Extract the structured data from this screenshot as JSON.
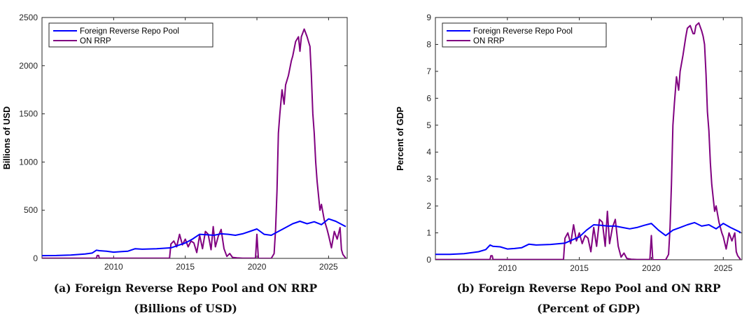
{
  "chart_data": [
    {
      "type": "line",
      "ylabel": "Billions of USD",
      "xlabel": "",
      "xlim": [
        2005,
        2026.3
      ],
      "ylim": [
        0,
        2500
      ],
      "xticks": [
        2010,
        2015,
        2020,
        2025
      ],
      "yticks": [
        0,
        500,
        1000,
        1500,
        2000,
        2500
      ],
      "legend": {
        "placement": "top-left"
      },
      "series": [
        {
          "name": "Foreign Reverse Repo Pool",
          "color": "#0000ff",
          "x": [
            2005.0,
            2006.0,
            2007.0,
            2008.0,
            2008.5,
            2008.8,
            2009.0,
            2009.5,
            2010.0,
            2010.5,
            2011.0,
            2011.5,
            2012.0,
            2013.0,
            2014.0,
            2015.0,
            2015.5,
            2016.0,
            2016.5,
            2017.0,
            2017.5,
            2018.0,
            2018.5,
            2019.0,
            2019.5,
            2020.0,
            2020.5,
            2021.0,
            2021.5,
            2022.0,
            2022.5,
            2023.0,
            2023.5,
            2024.0,
            2024.5,
            2025.0,
            2025.5,
            2026.2
          ],
          "y": [
            28,
            30,
            35,
            45,
            55,
            85,
            80,
            75,
            65,
            70,
            75,
            100,
            95,
            100,
            110,
            160,
            200,
            250,
            245,
            240,
            255,
            250,
            240,
            255,
            280,
            305,
            250,
            240,
            280,
            320,
            360,
            385,
            360,
            380,
            350,
            410,
            385,
            330
          ]
        },
        {
          "name": "ON RRP",
          "color": "#800080",
          "x": [
            2005.0,
            2008.8,
            2008.85,
            2008.95,
            2009.0,
            2013.9,
            2014.0,
            2014.2,
            2014.4,
            2014.6,
            2014.8,
            2015.0,
            2015.2,
            2015.4,
            2015.6,
            2015.8,
            2016.0,
            2016.2,
            2016.4,
            2016.6,
            2016.8,
            2016.95,
            2017.1,
            2017.3,
            2017.5,
            2017.7,
            2017.9,
            2018.1,
            2018.3,
            2018.6,
            2019.0,
            2019.5,
            2019.9,
            2020.0,
            2020.1,
            2020.2,
            2020.3,
            2021.0,
            2021.2,
            2021.3,
            2021.4,
            2021.5,
            2021.6,
            2021.75,
            2021.9,
            2022.0,
            2022.2,
            2022.4,
            2022.5,
            2022.7,
            2022.9,
            2023.0,
            2023.1,
            2023.3,
            2023.5,
            2023.6,
            2023.7,
            2023.8,
            2023.9,
            2024.0,
            2024.1,
            2024.2,
            2024.4,
            2024.5,
            2024.7,
            2024.9,
            2025.0,
            2025.2,
            2025.4,
            2025.6,
            2025.8,
            2025.9,
            2026.0,
            2026.2
          ],
          "y": [
            2,
            2,
            30,
            30,
            2,
            2,
            150,
            180,
            120,
            250,
            140,
            200,
            120,
            180,
            160,
            60,
            240,
            100,
            280,
            250,
            90,
            330,
            120,
            230,
            300,
            100,
            20,
            50,
            10,
            5,
            2,
            2,
            2,
            250,
            0,
            0,
            0,
            0,
            50,
            300,
            700,
            1300,
            1500,
            1750,
            1600,
            1800,
            1900,
            2050,
            2100,
            2250,
            2300,
            2150,
            2300,
            2380,
            2300,
            2250,
            2200,
            1900,
            1500,
            1300,
            1000,
            800,
            500,
            560,
            400,
            300,
            240,
            110,
            280,
            200,
            320,
            90,
            40,
            2
          ]
        }
      ]
    },
    {
      "type": "line",
      "ylabel": "Percent of GDP",
      "xlabel": "",
      "xlim": [
        2005,
        2026.3
      ],
      "ylim": [
        0,
        9
      ],
      "xticks": [
        2010,
        2015,
        2020,
        2025
      ],
      "yticks": [
        0,
        1,
        2,
        3,
        4,
        5,
        6,
        7,
        8,
        9
      ],
      "legend": {
        "placement": "top-left"
      },
      "series": [
        {
          "name": "Foreign Reverse Repo Pool",
          "color": "#0000ff",
          "x": [
            2005.0,
            2006.0,
            2007.0,
            2008.0,
            2008.5,
            2008.8,
            2009.0,
            2009.5,
            2010.0,
            2010.5,
            2011.0,
            2011.5,
            2012.0,
            2013.0,
            2014.0,
            2015.0,
            2015.5,
            2016.0,
            2016.5,
            2017.0,
            2017.5,
            2018.0,
            2018.5,
            2019.0,
            2019.5,
            2020.0,
            2020.5,
            2021.0,
            2021.5,
            2022.0,
            2022.5,
            2023.0,
            2023.5,
            2024.0,
            2024.5,
            2025.0,
            2025.5,
            2026.2
          ],
          "y": [
            0.2,
            0.2,
            0.23,
            0.3,
            0.38,
            0.55,
            0.5,
            0.48,
            0.4,
            0.42,
            0.45,
            0.58,
            0.55,
            0.57,
            0.62,
            0.85,
            1.1,
            1.3,
            1.28,
            1.25,
            1.25,
            1.2,
            1.15,
            1.2,
            1.28,
            1.35,
            1.1,
            0.9,
            1.1,
            1.2,
            1.3,
            1.38,
            1.25,
            1.3,
            1.15,
            1.35,
            1.2,
            1.02
          ]
        },
        {
          "name": "ON RRP",
          "color": "#800080",
          "x": [
            2005.0,
            2008.8,
            2008.85,
            2008.95,
            2009.0,
            2013.9,
            2014.0,
            2014.2,
            2014.4,
            2014.6,
            2014.8,
            2015.0,
            2015.2,
            2015.4,
            2015.6,
            2015.8,
            2016.0,
            2016.2,
            2016.4,
            2016.6,
            2016.8,
            2016.95,
            2017.1,
            2017.3,
            2017.5,
            2017.7,
            2017.9,
            2018.1,
            2018.3,
            2018.6,
            2019.0,
            2019.5,
            2019.9,
            2020.0,
            2020.1,
            2020.2,
            2020.3,
            2021.0,
            2021.2,
            2021.3,
            2021.4,
            2021.5,
            2021.6,
            2021.75,
            2021.9,
            2022.0,
            2022.2,
            2022.4,
            2022.5,
            2022.7,
            2022.9,
            2023.0,
            2023.1,
            2023.3,
            2023.5,
            2023.6,
            2023.7,
            2023.8,
            2023.9,
            2024.0,
            2024.1,
            2024.2,
            2024.4,
            2024.5,
            2024.7,
            2024.9,
            2025.0,
            2025.2,
            2025.4,
            2025.6,
            2025.8,
            2025.9,
            2026.0,
            2026.2
          ],
          "y": [
            0.01,
            0.01,
            0.15,
            0.15,
            0.01,
            0.01,
            0.8,
            1.0,
            0.6,
            1.3,
            0.7,
            1.0,
            0.6,
            0.9,
            0.8,
            0.3,
            1.2,
            0.5,
            1.5,
            1.4,
            0.5,
            1.8,
            0.6,
            1.2,
            1.5,
            0.5,
            0.1,
            0.25,
            0.05,
            0.02,
            0.01,
            0.01,
            0.01,
            0.9,
            0.0,
            0.0,
            0.0,
            0.0,
            0.2,
            1.2,
            2.8,
            5.0,
            5.8,
            6.8,
            6.3,
            7.0,
            7.6,
            8.3,
            8.6,
            8.7,
            8.4,
            8.4,
            8.7,
            8.8,
            8.5,
            8.3,
            8.0,
            6.9,
            5.5,
            4.8,
            3.6,
            2.8,
            1.8,
            2.0,
            1.4,
            1.0,
            0.85,
            0.4,
            1.0,
            0.7,
            1.0,
            0.3,
            0.15,
            0.01
          ]
        }
      ]
    }
  ],
  "captions": [
    {
      "line1": "(a) Foreign Reverse Repo Pool and ON RRP",
      "line2": "(Billions of USD)"
    },
    {
      "line1": "(b) Foreign Reverse Repo Pool and ON RRP",
      "line2": "(Percent of GDP)"
    }
  ]
}
